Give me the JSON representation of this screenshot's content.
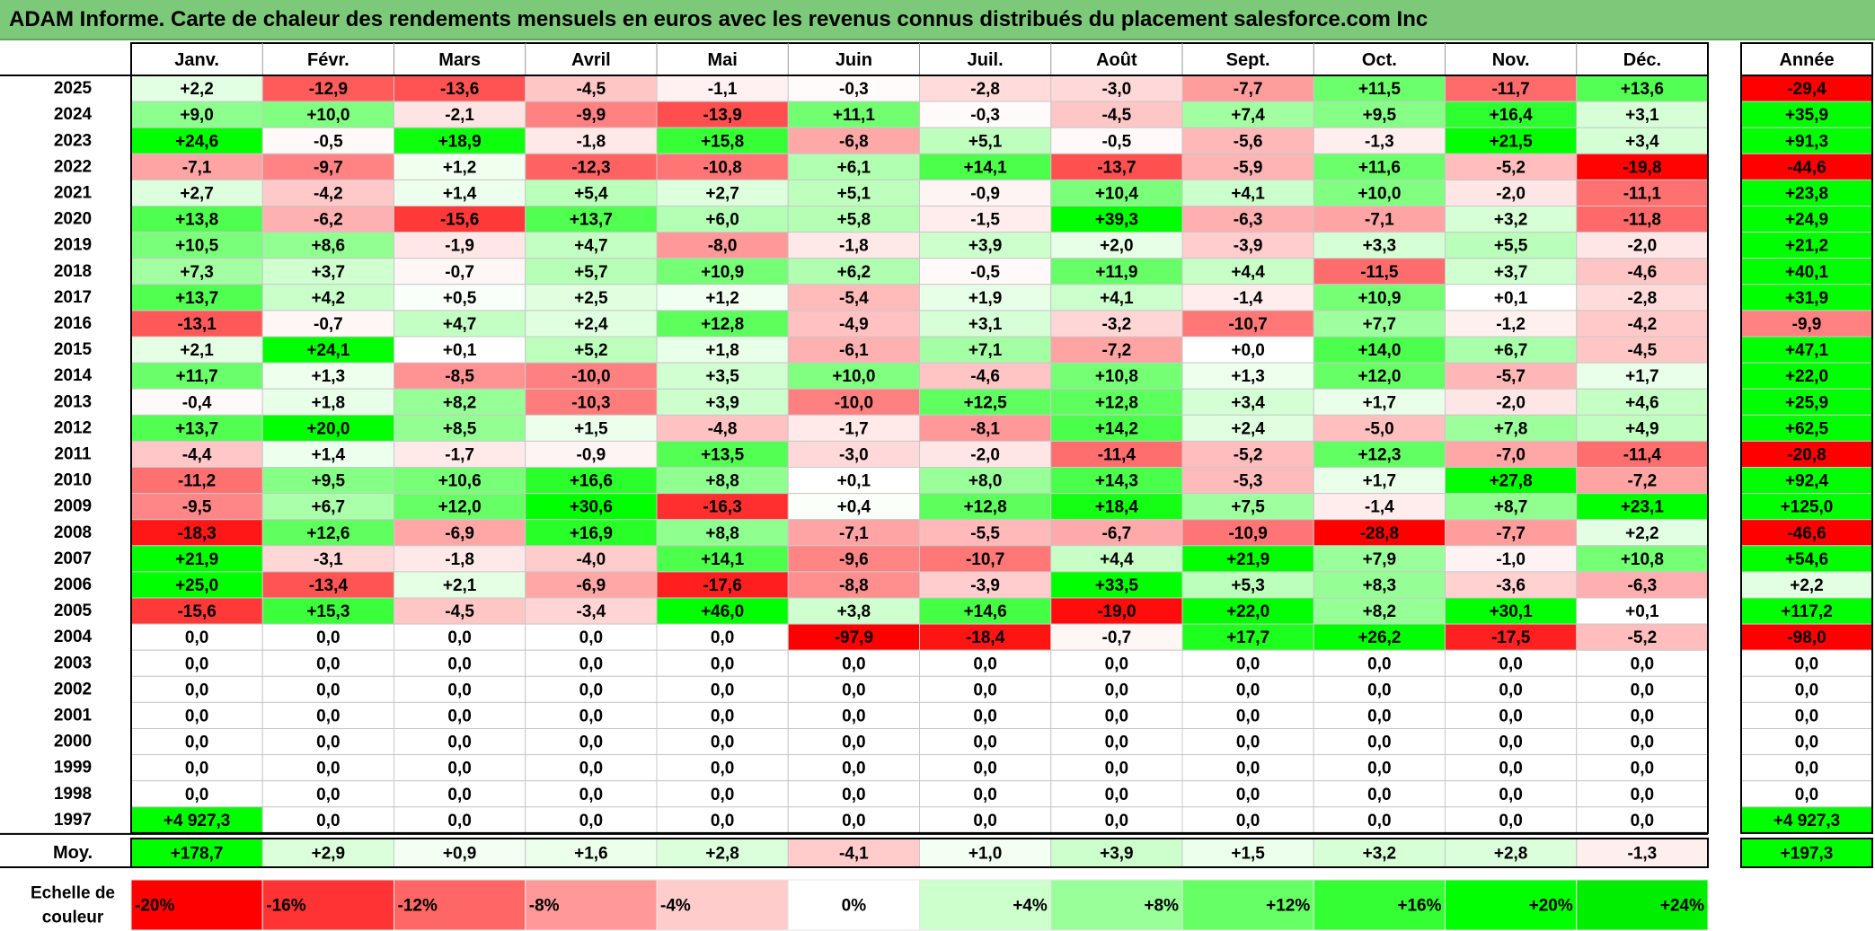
{
  "title": "ADAM Informe. Carte de chaleur des rendements mensuels en euros avec les revenus connus distribués du placement salesforce.com Inc",
  "chart_data": {
    "type": "heatmap",
    "title": "ADAM Informe. Carte de chaleur des rendements mensuels en euros avec les revenus connus distribués du placement salesforce.com Inc",
    "columns": [
      "Janv.",
      "Févr.",
      "Mars",
      "Avril",
      "Mai",
      "Juin",
      "Juil.",
      "Août",
      "Sept.",
      "Oct.",
      "Nov.",
      "Déc."
    ],
    "year_column_label": "Année",
    "rows": [
      {
        "year": "2025",
        "values": [
          "+2,2",
          "-12,9",
          "-13,6",
          "-4,5",
          "-1,1",
          "-0,3",
          "-2,8",
          "-3,0",
          "-7,7",
          "+11,5",
          "-11,7",
          "+13,6"
        ],
        "annual": "-29,4"
      },
      {
        "year": "2024",
        "values": [
          "+9,0",
          "+10,0",
          "-2,1",
          "-9,9",
          "-13,9",
          "+11,1",
          "-0,3",
          "-4,5",
          "+7,4",
          "+9,5",
          "+16,4",
          "+3,1"
        ],
        "annual": "+35,9"
      },
      {
        "year": "2023",
        "values": [
          "+24,6",
          "-0,5",
          "+18,9",
          "-1,8",
          "+15,8",
          "-6,8",
          "+5,1",
          "-0,5",
          "-5,6",
          "-1,3",
          "+21,5",
          "+3,4"
        ],
        "annual": "+91,3"
      },
      {
        "year": "2022",
        "values": [
          "-7,1",
          "-9,7",
          "+1,2",
          "-12,3",
          "-10,8",
          "+6,1",
          "+14,1",
          "-13,7",
          "-5,9",
          "+11,6",
          "-5,2",
          "-19,8"
        ],
        "annual": "-44,6"
      },
      {
        "year": "2021",
        "values": [
          "+2,7",
          "-4,2",
          "+1,4",
          "+5,4",
          "+2,7",
          "+5,1",
          "-0,9",
          "+10,4",
          "+4,1",
          "+10,0",
          "-2,0",
          "-11,1"
        ],
        "annual": "+23,8"
      },
      {
        "year": "2020",
        "values": [
          "+13,8",
          "-6,2",
          "-15,6",
          "+13,7",
          "+6,0",
          "+5,8",
          "-1,5",
          "+39,3",
          "-6,3",
          "-7,1",
          "+3,2",
          "-11,8"
        ],
        "annual": "+24,9"
      },
      {
        "year": "2019",
        "values": [
          "+10,5",
          "+8,6",
          "-1,9",
          "+4,7",
          "-8,0",
          "-1,8",
          "+3,9",
          "+2,0",
          "-3,9",
          "+3,3",
          "+5,5",
          "-2,0"
        ],
        "annual": "+21,2"
      },
      {
        "year": "2018",
        "values": [
          "+7,3",
          "+3,7",
          "-0,7",
          "+5,7",
          "+10,9",
          "+6,2",
          "-0,5",
          "+11,9",
          "+4,4",
          "-11,5",
          "+3,7",
          "-4,6"
        ],
        "annual": "+40,1"
      },
      {
        "year": "2017",
        "values": [
          "+13,7",
          "+4,2",
          "+0,5",
          "+2,5",
          "+1,2",
          "-5,4",
          "+1,9",
          "+4,1",
          "-1,4",
          "+10,9",
          "+0,1",
          "-2,8"
        ],
        "annual": "+31,9"
      },
      {
        "year": "2016",
        "values": [
          "-13,1",
          "-0,7",
          "+4,7",
          "+2,4",
          "+12,8",
          "-4,9",
          "+3,1",
          "-3,2",
          "-10,7",
          "+7,7",
          "-1,2",
          "-4,2"
        ],
        "annual": "-9,9"
      },
      {
        "year": "2015",
        "values": [
          "+2,1",
          "+24,1",
          "+0,1",
          "+5,2",
          "+1,8",
          "-6,1",
          "+7,1",
          "-7,2",
          "+0,0",
          "+14,0",
          "+6,7",
          "-4,5"
        ],
        "annual": "+47,1"
      },
      {
        "year": "2014",
        "values": [
          "+11,7",
          "+1,3",
          "-8,5",
          "-10,0",
          "+3,5",
          "+10,0",
          "-4,6",
          "+10,8",
          "+1,3",
          "+12,0",
          "-5,7",
          "+1,7"
        ],
        "annual": "+22,0"
      },
      {
        "year": "2013",
        "values": [
          "-0,4",
          "+1,8",
          "+8,2",
          "-10,3",
          "+3,9",
          "-10,0",
          "+12,5",
          "+12,8",
          "+3,4",
          "+1,7",
          "-2,0",
          "+4,6"
        ],
        "annual": "+25,9"
      },
      {
        "year": "2012",
        "values": [
          "+13,7",
          "+20,0",
          "+8,5",
          "+1,5",
          "-4,8",
          "-1,7",
          "-8,1",
          "+14,2",
          "+2,4",
          "-5,0",
          "+7,8",
          "+4,9"
        ],
        "annual": "+62,5"
      },
      {
        "year": "2011",
        "values": [
          "-4,4",
          "+1,4",
          "-1,7",
          "-0,9",
          "+13,5",
          "-3,0",
          "-2,0",
          "-11,4",
          "-5,2",
          "+12,3",
          "-7,0",
          "-11,4"
        ],
        "annual": "-20,8"
      },
      {
        "year": "2010",
        "values": [
          "-11,2",
          "+9,5",
          "+10,6",
          "+16,6",
          "+8,8",
          "+0,1",
          "+8,0",
          "+14,3",
          "-5,3",
          "+1,7",
          "+27,8",
          "-7,2"
        ],
        "annual": "+92,4"
      },
      {
        "year": "2009",
        "values": [
          "-9,5",
          "+6,7",
          "+12,0",
          "+30,6",
          "-16,3",
          "+0,4",
          "+12,8",
          "+18,4",
          "+7,5",
          "-1,4",
          "+8,7",
          "+23,1"
        ],
        "annual": "+125,0"
      },
      {
        "year": "2008",
        "values": [
          "-18,3",
          "+12,6",
          "-6,9",
          "+16,9",
          "+8,8",
          "-7,1",
          "-5,5",
          "-6,7",
          "-10,9",
          "-28,8",
          "-7,7",
          "+2,2"
        ],
        "annual": "-46,6"
      },
      {
        "year": "2007",
        "values": [
          "+21,9",
          "-3,1",
          "-1,8",
          "-4,0",
          "+14,1",
          "-9,6",
          "-10,7",
          "+4,4",
          "+21,9",
          "+7,9",
          "-1,0",
          "+10,8"
        ],
        "annual": "+54,6"
      },
      {
        "year": "2006",
        "values": [
          "+25,0",
          "-13,4",
          "+2,1",
          "-6,9",
          "-17,6",
          "-8,8",
          "-3,9",
          "+33,5",
          "+5,3",
          "+8,3",
          "-3,6",
          "-6,3"
        ],
        "annual": "+2,2"
      },
      {
        "year": "2005",
        "values": [
          "-15,6",
          "+15,3",
          "-4,5",
          "-3,4",
          "+46,0",
          "+3,8",
          "+14,6",
          "-19,0",
          "+22,0",
          "+8,2",
          "+30,1",
          "+0,1"
        ],
        "annual": "+117,2"
      },
      {
        "year": "2004",
        "values": [
          "0,0",
          "0,0",
          "0,0",
          "0,0",
          "0,0",
          "-97,9",
          "-18,4",
          "-0,7",
          "+17,7",
          "+26,2",
          "-17,5",
          "-5,2"
        ],
        "annual": "-98,0"
      },
      {
        "year": "2003",
        "values": [
          "0,0",
          "0,0",
          "0,0",
          "0,0",
          "0,0",
          "0,0",
          "0,0",
          "0,0",
          "0,0",
          "0,0",
          "0,0",
          "0,0"
        ],
        "annual": "0,0"
      },
      {
        "year": "2002",
        "values": [
          "0,0",
          "0,0",
          "0,0",
          "0,0",
          "0,0",
          "0,0",
          "0,0",
          "0,0",
          "0,0",
          "0,0",
          "0,0",
          "0,0"
        ],
        "annual": "0,0"
      },
      {
        "year": "2001",
        "values": [
          "0,0",
          "0,0",
          "0,0",
          "0,0",
          "0,0",
          "0,0",
          "0,0",
          "0,0",
          "0,0",
          "0,0",
          "0,0",
          "0,0"
        ],
        "annual": "0,0"
      },
      {
        "year": "2000",
        "values": [
          "0,0",
          "0,0",
          "0,0",
          "0,0",
          "0,0",
          "0,0",
          "0,0",
          "0,0",
          "0,0",
          "0,0",
          "0,0",
          "0,0"
        ],
        "annual": "0,0"
      },
      {
        "year": "1999",
        "values": [
          "0,0",
          "0,0",
          "0,0",
          "0,0",
          "0,0",
          "0,0",
          "0,0",
          "0,0",
          "0,0",
          "0,0",
          "0,0",
          "0,0"
        ],
        "annual": "0,0"
      },
      {
        "year": "1998",
        "values": [
          "0,0",
          "0,0",
          "0,0",
          "0,0",
          "0,0",
          "0,0",
          "0,0",
          "0,0",
          "0,0",
          "0,0",
          "0,0",
          "0,0"
        ],
        "annual": "0,0"
      },
      {
        "year": "1997",
        "values": [
          "+4 927,3",
          "0,0",
          "0,0",
          "0,0",
          "0,0",
          "0,0",
          "0,0",
          "0,0",
          "0,0",
          "0,0",
          "0,0",
          "0,0"
        ],
        "annual": "+4 927,3"
      }
    ],
    "average": {
      "label": "Moy.",
      "values": [
        "+178,7",
        "+2,9",
        "+0,9",
        "+1,6",
        "+2,8",
        "-4,1",
        "+1,0",
        "+3,9",
        "+1,5",
        "+3,2",
        "+2,8",
        "-1,3"
      ],
      "annual": "+197,3"
    },
    "color_scale": {
      "label": "Echelle de couleur",
      "stops": [
        {
          "label": "-20%",
          "color": "#ff0000"
        },
        {
          "label": "-16%",
          "color": "#ff3333"
        },
        {
          "label": "-12%",
          "color": "#ff6666"
        },
        {
          "label": "-8%",
          "color": "#ff9999"
        },
        {
          "label": "-4%",
          "color": "#ffcccc"
        },
        {
          "label": "0%",
          "color": "#ffffff"
        },
        {
          "label": "+4%",
          "color": "#ccffcc"
        },
        {
          "label": "+8%",
          "color": "#99ff99"
        },
        {
          "label": "+12%",
          "color": "#66ff66"
        },
        {
          "label": "+16%",
          "color": "#33ff33"
        },
        {
          "label": "+20%",
          "color": "#00ff00"
        },
        {
          "label": "+24%",
          "color": "#00ee00"
        }
      ]
    }
  }
}
